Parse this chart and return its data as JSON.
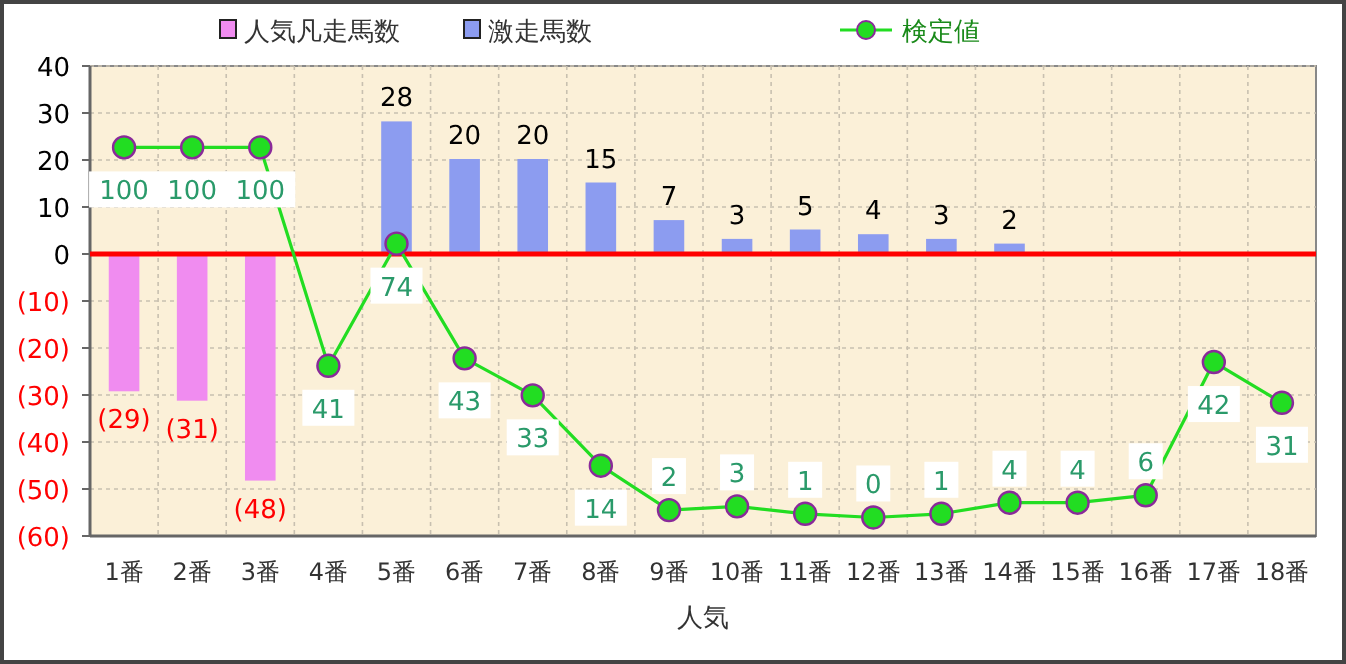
{
  "chart_data": {
    "type": "bar",
    "categories": [
      "1番",
      "2番",
      "3番",
      "4番",
      "5番",
      "6番",
      "7番",
      "8番",
      "9番",
      "10番",
      "11番",
      "12番",
      "13番",
      "14番",
      "15番",
      "16番",
      "17番",
      "18番"
    ],
    "xlabel": "人気",
    "ylim": [
      -60,
      40
    ],
    "yticks": [
      40,
      30,
      20,
      10,
      0,
      {
        "value": -10,
        "label": "(10)"
      },
      {
        "value": -20,
        "label": "(20)"
      },
      {
        "value": -30,
        "label": "(30)"
      },
      {
        "value": -40,
        "label": "(40)"
      },
      {
        "value": -50,
        "label": "(50)"
      },
      {
        "value": -60,
        "label": "(60)"
      }
    ],
    "y2lim": [
      -5,
      122
    ],
    "tick_labels": "xy",
    "grid": true,
    "legend": "top",
    "ref_lines": [
      {
        "axis": "y",
        "value": 0,
        "color": "#ff0000"
      }
    ],
    "series": [
      {
        "name": "人気凡走馬数",
        "color": "#f08cf0",
        "values": [
          -29,
          -31,
          -48,
          null,
          null,
          null,
          null,
          null,
          null,
          null,
          null,
          null,
          null,
          null,
          null,
          null,
          null,
          null
        ],
        "value_labels": [
          "(29)",
          "(31)",
          "(48)",
          null,
          null,
          null,
          null,
          null,
          null,
          null,
          null,
          null,
          null,
          null,
          null,
          null,
          null,
          null
        ]
      },
      {
        "name": "激走馬数",
        "color": "#8c9cf0",
        "values": [
          null,
          null,
          null,
          null,
          28,
          20,
          20,
          15,
          7,
          3,
          5,
          4,
          3,
          2,
          null,
          null,
          null,
          null
        ],
        "value_labels": [
          null,
          null,
          null,
          null,
          "28",
          "20",
          "20",
          "15",
          "7",
          "3",
          "5",
          "4",
          "3",
          "2",
          null,
          null,
          null,
          null
        ]
      },
      {
        "name": "検定値",
        "type": "line",
        "axis": "y2",
        "color": "#22dd22",
        "marker": "circle",
        "values": [
          100,
          100,
          100,
          41,
          74,
          43,
          33,
          14,
          2,
          3,
          1,
          0,
          1,
          4,
          4,
          6,
          42,
          31
        ],
        "value_labels": [
          "100",
          "100",
          "100",
          "41",
          "74",
          "43",
          "33",
          "14",
          "2",
          "3",
          "1",
          "0",
          "1",
          "4",
          "4",
          "6",
          "42",
          "31"
        ]
      }
    ]
  }
}
